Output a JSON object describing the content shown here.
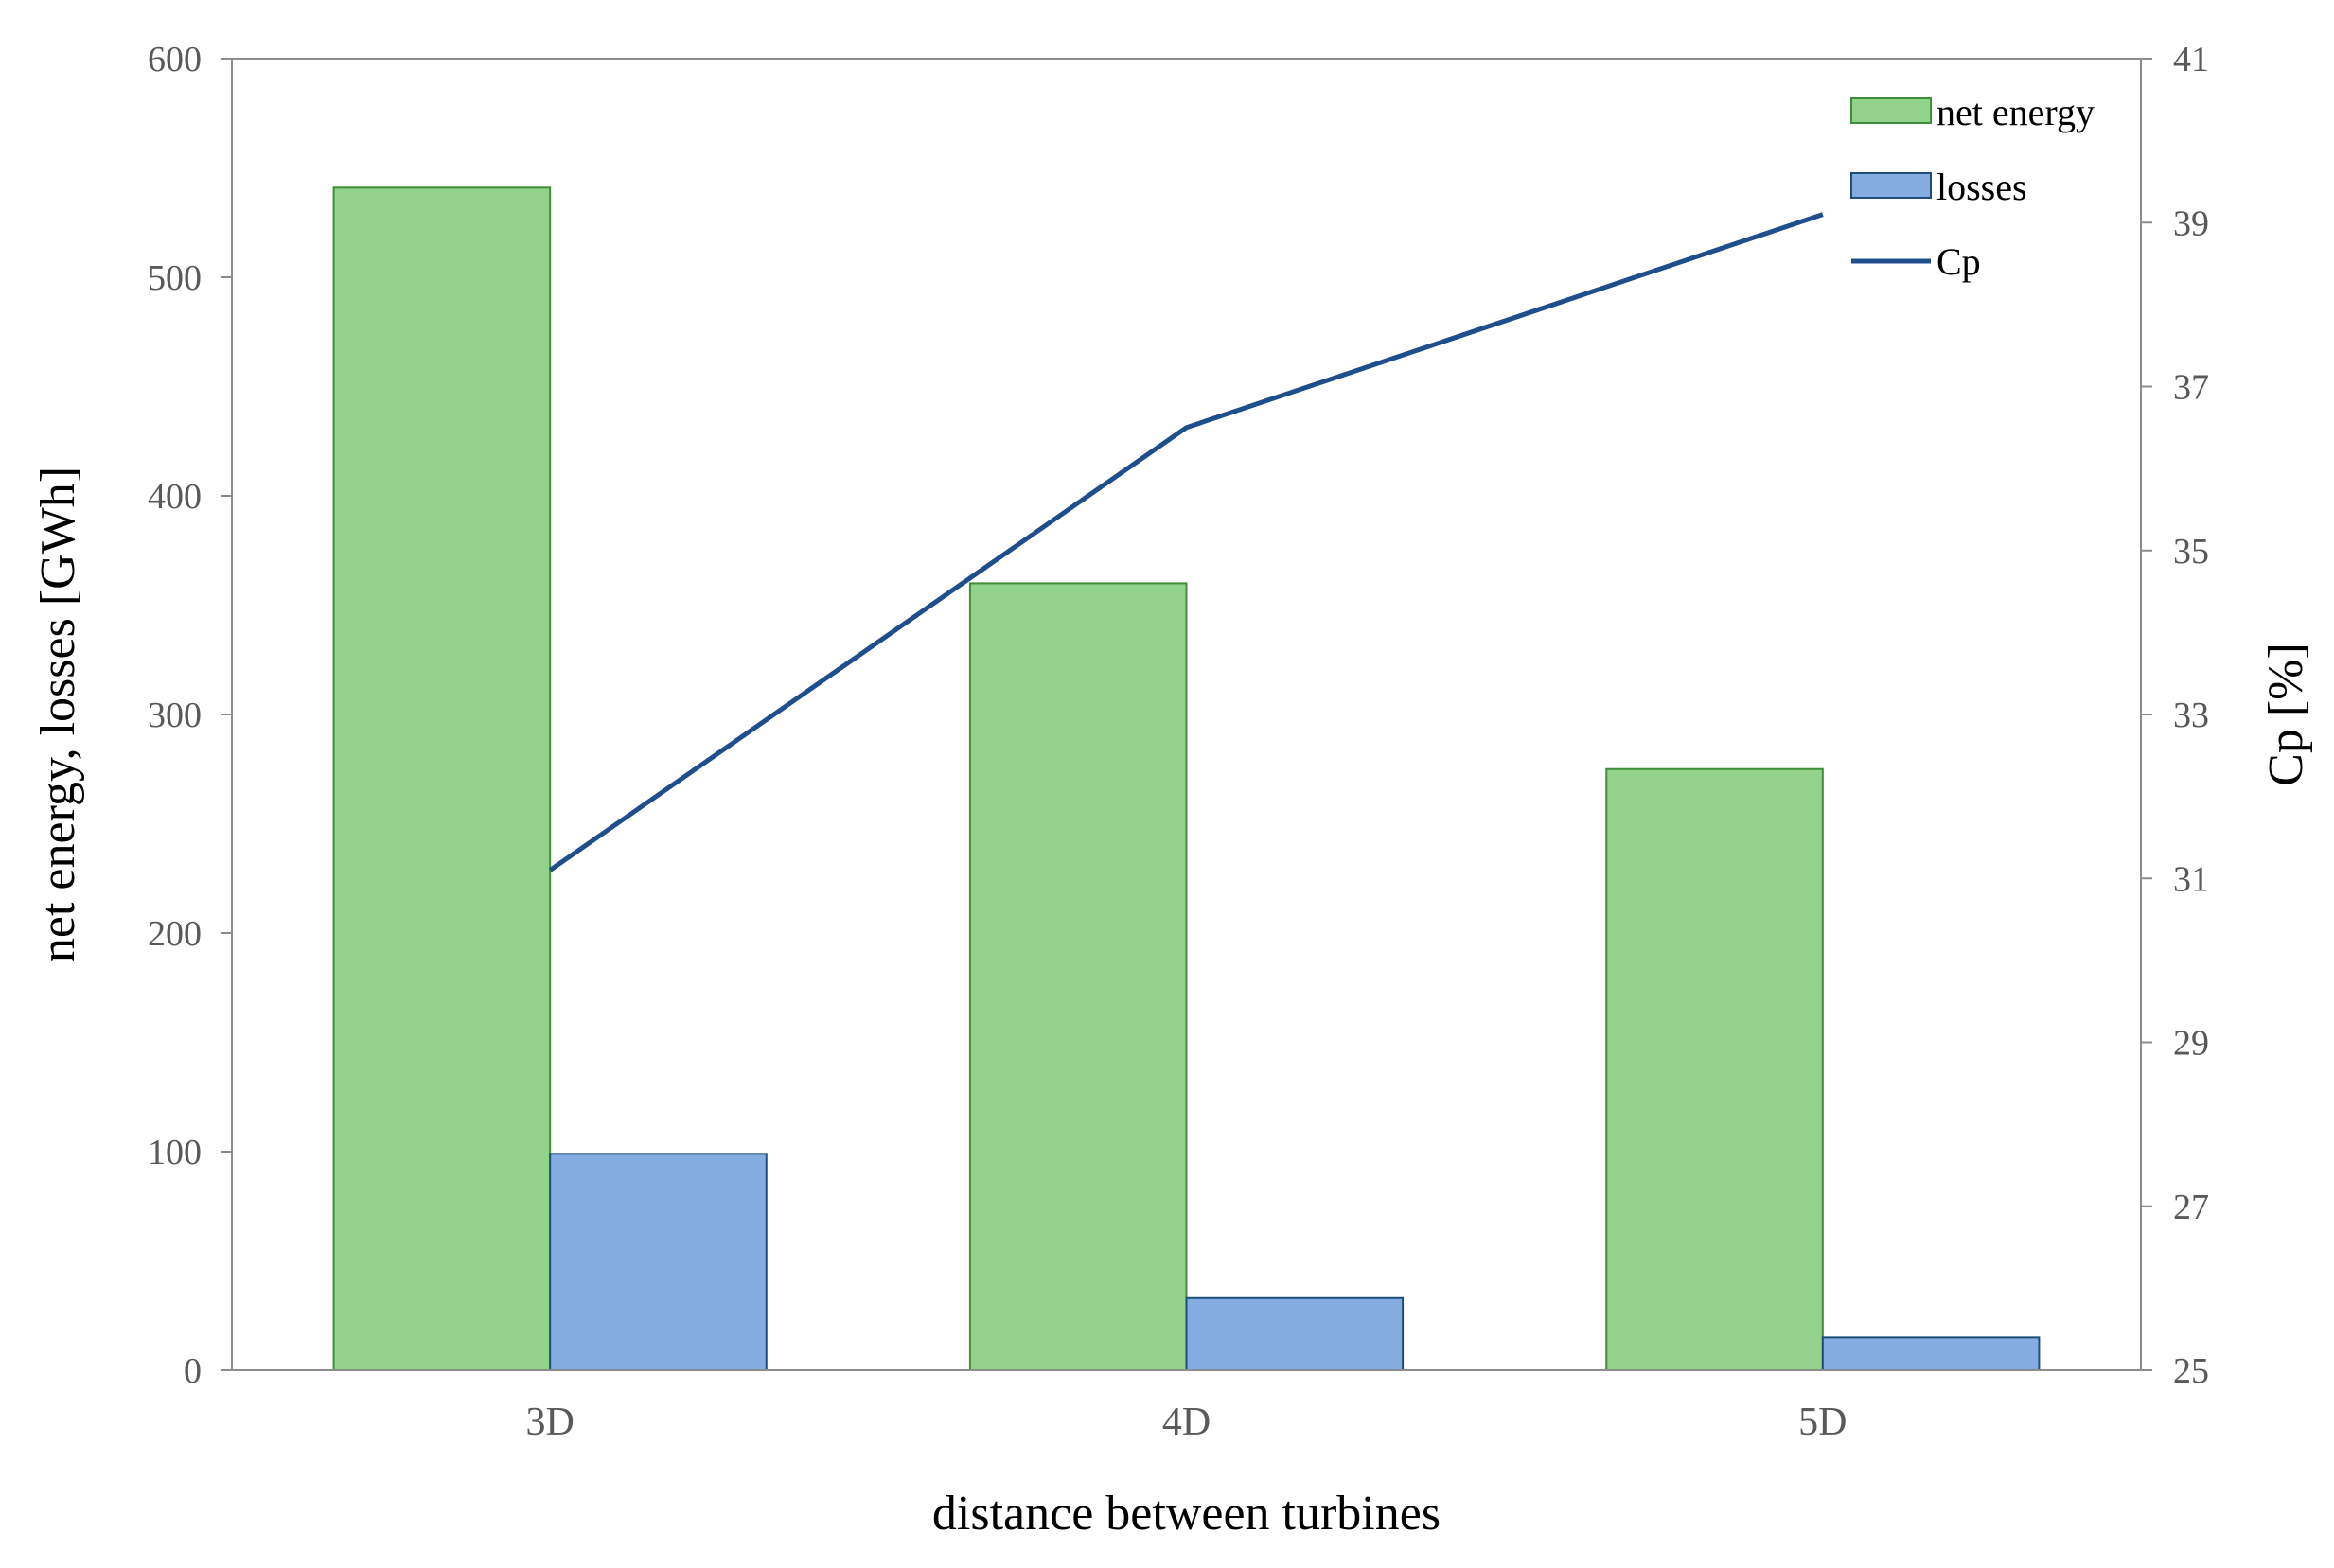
{
  "chart_data": {
    "type": "bar",
    "categories": [
      "3D",
      "4D",
      "5D"
    ],
    "series": [
      {
        "name": "net energy",
        "type": "bar",
        "axis": "left",
        "values": [
          541,
          360,
          275
        ],
        "color": "#92d28a",
        "stroke": "#3f8f3a"
      },
      {
        "name": "losses",
        "type": "bar",
        "axis": "left",
        "values": [
          99,
          33,
          15
        ],
        "color": "#84ace0",
        "stroke": "#1f4e79"
      },
      {
        "name": "Cp",
        "type": "line",
        "axis": "right",
        "values": [
          31.1,
          36.5,
          39.1
        ],
        "color": "#1f4e8c"
      }
    ],
    "xlabel": "distance between turbines",
    "ylabel": "net energy, losses [GWh]",
    "y2label": "Cp [%]",
    "ylim": [
      0,
      600
    ],
    "y2lim": [
      25,
      41
    ],
    "yticks": [
      "0",
      "100",
      "200",
      "300",
      "400",
      "500",
      "600"
    ],
    "y2ticks": [
      "25",
      "27",
      "29",
      "31",
      "33",
      "35",
      "37",
      "39",
      "41"
    ],
    "legend_position": "top-right",
    "grid": false
  }
}
